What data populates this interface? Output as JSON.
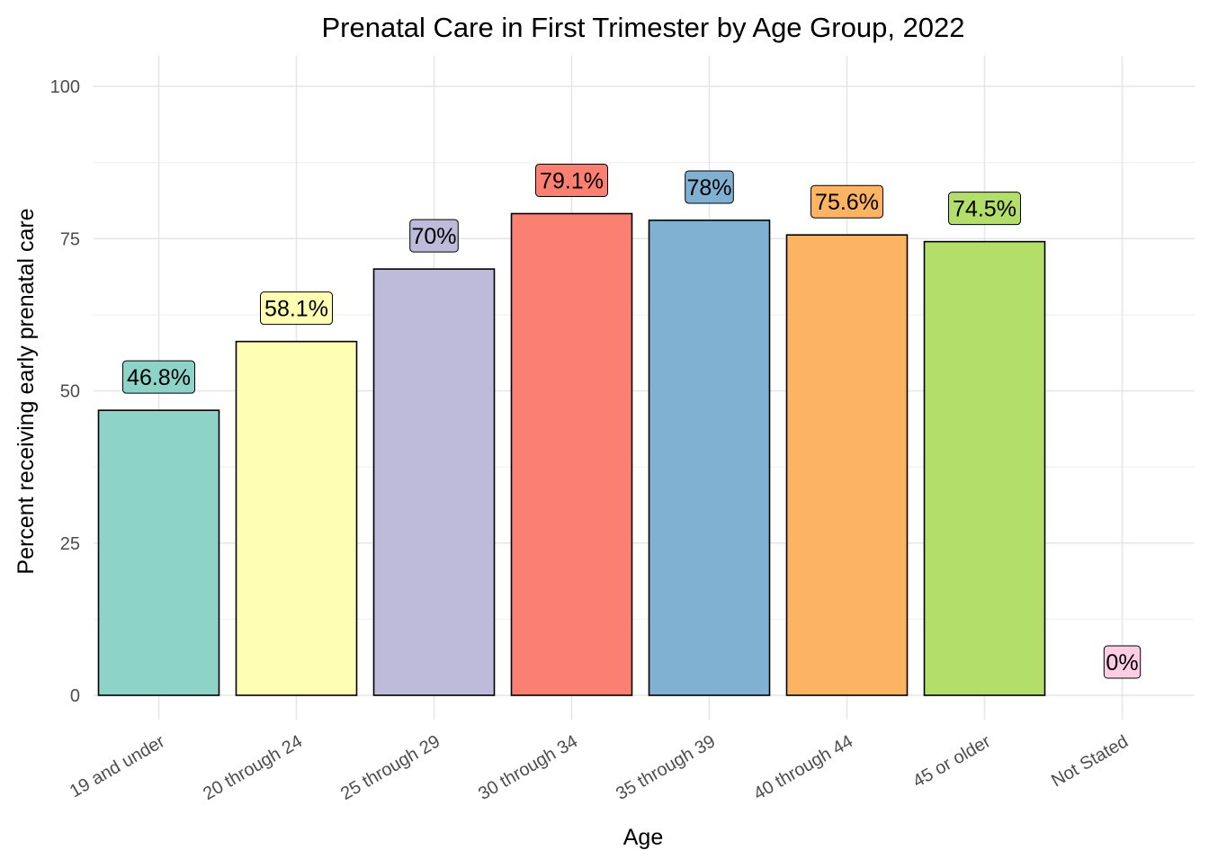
{
  "chart_data": {
    "type": "bar",
    "title": "Prenatal Care in First Trimester by Age Group, 2022",
    "xlabel": "Age",
    "ylabel": "Percent receiving early prenatal care",
    "categories": [
      "19 and under",
      "20 through 24",
      "25 through 29",
      "30 through 34",
      "35 through 39",
      "40 through 44",
      "45 or older",
      "Not Stated"
    ],
    "values": [
      46.8,
      58.1,
      70,
      79.1,
      78,
      75.6,
      74.5,
      0
    ],
    "data_labels": [
      "46.8%",
      "58.1%",
      "70%",
      "79.1%",
      "78%",
      "75.6%",
      "74.5%",
      "0%"
    ],
    "colors": [
      "#8DD3C7",
      "#FFFFB3",
      "#BEBADA",
      "#FB8072",
      "#80B1D3",
      "#FDB462",
      "#B3DE69",
      "#FCCDE5"
    ],
    "ylim": [
      0,
      105
    ],
    "yticks": [
      0,
      25,
      50,
      75,
      100
    ],
    "ytick_labels": [
      "0",
      "25",
      "50",
      "75",
      "100"
    ],
    "grid": true,
    "legend": "none"
  }
}
